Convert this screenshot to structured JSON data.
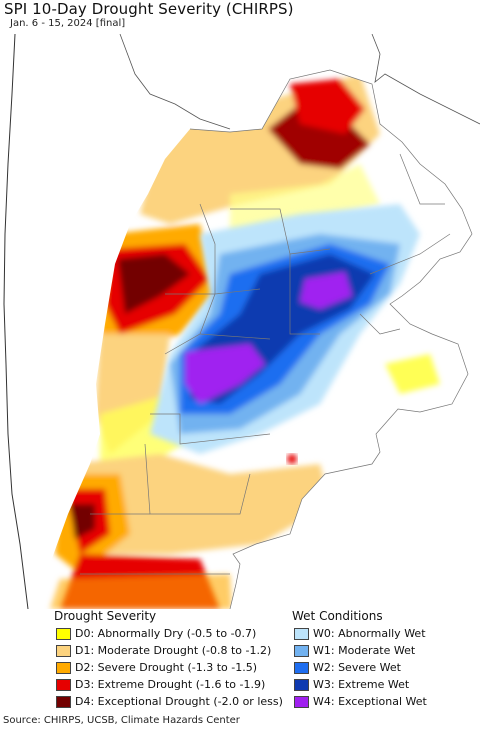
{
  "header": {
    "title": "SPI 10-Day Drought Severity (CHIRPS)",
    "subtitle": "Jan. 6 - 15, 2024 [final]"
  },
  "legend": {
    "drought_heading": "Drought Severity",
    "wet_heading": "Wet Conditions",
    "drought_items": [
      {
        "label": "D0: Abnormally Dry (-0.5 to -0.7)",
        "color": "#ffff00"
      },
      {
        "label": "D1: Moderate Drought (-0.8 to -1.2)",
        "color": "#fcd37f"
      },
      {
        "label": "D2: Severe Drought (-1.3 to -1.5)",
        "color": "#ffaa00"
      },
      {
        "label": "D3: Extreme Drought (-1.6 to -1.9)",
        "color": "#e60000"
      },
      {
        "label": "D4: Exceptional Drought (-2.0 or less)",
        "color": "#730000"
      }
    ],
    "wet_items": [
      {
        "label": "W0: Abnormally Wet",
        "color": "#bde4fb"
      },
      {
        "label": "W1: Moderate Wet",
        "color": "#72b2f0"
      },
      {
        "label": "W2: Severe Wet",
        "color": "#1f6ef0"
      },
      {
        "label": "W3: Extreme Wet",
        "color": "#0f3ab0"
      },
      {
        "label": "W4: Exceptional Wet",
        "color": "#a020f0"
      }
    ]
  },
  "footer": {
    "source": "Source: CHIRPS, UCSB, Climate Hazards Center"
  }
}
